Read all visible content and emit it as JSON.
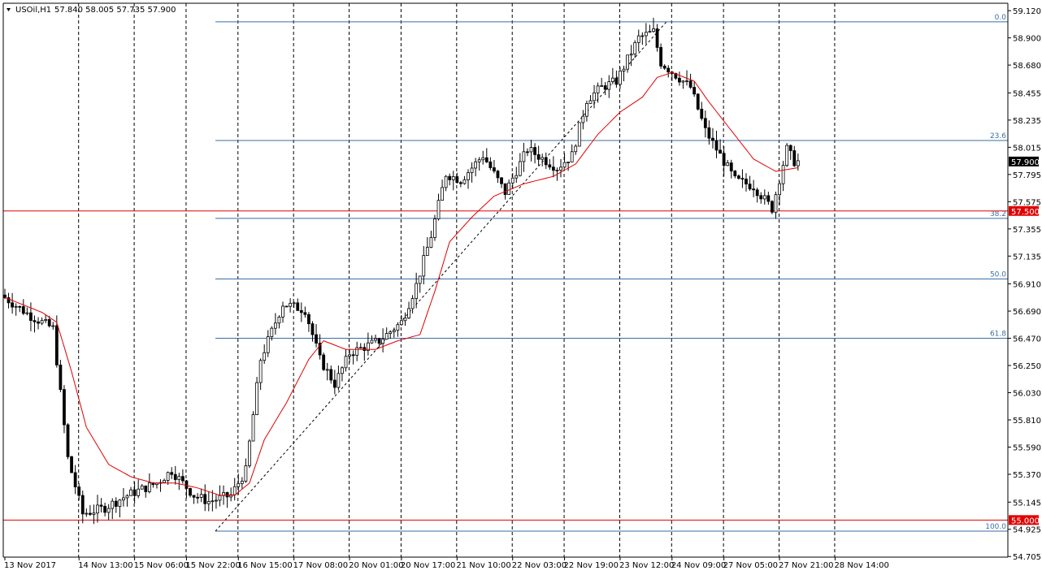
{
  "header": {
    "symbol_label": "USOil,H1",
    "ohlc_label": "57.840 58.005 57.735 57.900"
  },
  "colors": {
    "background": "#ffffff",
    "candle_up": "#000000",
    "candle_down": "#000000",
    "candle_up_fill": "#ffffff",
    "candle_down_fill": "#000000",
    "ma_line": "#e00000",
    "fib_line": "#3a6ea5",
    "fib_text": "#3a6ea5",
    "hline": "#e00000",
    "price_box": "#000000",
    "red_box": "#e00000",
    "grid": "#000000"
  },
  "chart_data": {
    "type": "candlestick",
    "symbol": "USOil",
    "timeframe": "H1",
    "ylim": [
      54.7,
      59.18
    ],
    "y_ticks": [
      "59.120",
      "58.900",
      "58.680",
      "58.455",
      "58.235",
      "58.015",
      "57.795",
      "57.575",
      "57.355",
      "57.135",
      "56.910",
      "56.690",
      "56.470",
      "56.250",
      "56.030",
      "55.810",
      "55.590",
      "55.370",
      "55.145",
      "54.925",
      "54.705"
    ],
    "x_ticks": [
      "13 Nov 2017",
      "14 Nov 13:00",
      "15 Nov 06:00",
      "15 Nov 22:00",
      "16 Nov 15:00",
      "17 Nov 08:00",
      "20 Nov 01:00",
      "20 Nov 17:00",
      "21 Nov 10:00",
      "22 Nov 03:00",
      "22 Nov 19:00",
      "23 Nov 12:00",
      "24 Nov 09:00",
      "27 Nov 05:00",
      "27 Nov 21:00",
      "28 Nov 14:00"
    ],
    "fib_levels": [
      {
        "label": "0.0",
        "price": 59.03
      },
      {
        "label": "23.6",
        "price": 58.07
      },
      {
        "label": "38.2",
        "price": 57.44
      },
      {
        "label": "50.0",
        "price": 56.95
      },
      {
        "label": "61.8",
        "price": 56.47
      },
      {
        "label": "100.0",
        "price": 54.91
      }
    ],
    "horizontal_lines": [
      {
        "label": "57.500",
        "price": 57.5
      },
      {
        "label": "55.000",
        "price": 55.0
      }
    ],
    "current_price": {
      "label": "57.900",
      "price": 57.9
    },
    "anchors": [
      [
        0,
        56.82
      ],
      [
        8,
        56.65
      ],
      [
        14,
        56.55
      ],
      [
        18,
        55.5
      ],
      [
        22,
        55.05
      ],
      [
        28,
        55.1
      ],
      [
        34,
        55.2
      ],
      [
        42,
        55.3
      ],
      [
        46,
        55.4
      ],
      [
        52,
        55.2
      ],
      [
        56,
        55.15
      ],
      [
        62,
        55.2
      ],
      [
        66,
        55.4
      ],
      [
        70,
        56.3
      ],
      [
        76,
        56.75
      ],
      [
        82,
        56.7
      ],
      [
        86,
        56.3
      ],
      [
        90,
        56.1
      ],
      [
        94,
        56.35
      ],
      [
        102,
        56.45
      ],
      [
        108,
        56.6
      ],
      [
        112,
        56.9
      ],
      [
        116,
        57.3
      ],
      [
        120,
        57.8
      ],
      [
        124,
        57.75
      ],
      [
        130,
        57.95
      ],
      [
        136,
        57.65
      ],
      [
        142,
        58.0
      ],
      [
        150,
        57.85
      ],
      [
        154,
        57.95
      ],
      [
        158,
        58.4
      ],
      [
        162,
        58.5
      ],
      [
        166,
        58.55
      ],
      [
        172,
        58.9
      ],
      [
        176,
        58.95
      ],
      [
        178,
        58.7
      ],
      [
        182,
        58.6
      ],
      [
        186,
        58.5
      ],
      [
        190,
        58.15
      ],
      [
        194,
        57.95
      ],
      [
        198,
        57.75
      ],
      [
        203,
        57.7
      ],
      [
        208,
        57.52
      ],
      [
        212,
        58.0
      ],
      [
        214,
        57.9
      ]
    ],
    "ma_anchors": [
      [
        0,
        56.8
      ],
      [
        10,
        56.68
      ],
      [
        14,
        56.6
      ],
      [
        18,
        56.2
      ],
      [
        22,
        55.75
      ],
      [
        28,
        55.45
      ],
      [
        34,
        55.35
      ],
      [
        40,
        55.3
      ],
      [
        46,
        55.3
      ],
      [
        52,
        55.26
      ],
      [
        58,
        55.2
      ],
      [
        62,
        55.2
      ],
      [
        66,
        55.3
      ],
      [
        70,
        55.65
      ],
      [
        76,
        55.95
      ],
      [
        82,
        56.3
      ],
      [
        86,
        56.45
      ],
      [
        92,
        56.38
      ],
      [
        100,
        56.38
      ],
      [
        106,
        56.45
      ],
      [
        112,
        56.5
      ],
      [
        116,
        56.85
      ],
      [
        120,
        57.25
      ],
      [
        126,
        57.45
      ],
      [
        132,
        57.62
      ],
      [
        140,
        57.72
      ],
      [
        148,
        57.78
      ],
      [
        154,
        57.88
      ],
      [
        160,
        58.12
      ],
      [
        166,
        58.3
      ],
      [
        172,
        58.42
      ],
      [
        176,
        58.58
      ],
      [
        180,
        58.62
      ],
      [
        186,
        58.55
      ],
      [
        190,
        58.38
      ],
      [
        196,
        58.15
      ],
      [
        202,
        57.92
      ],
      [
        208,
        57.82
      ],
      [
        214,
        57.85
      ]
    ]
  }
}
